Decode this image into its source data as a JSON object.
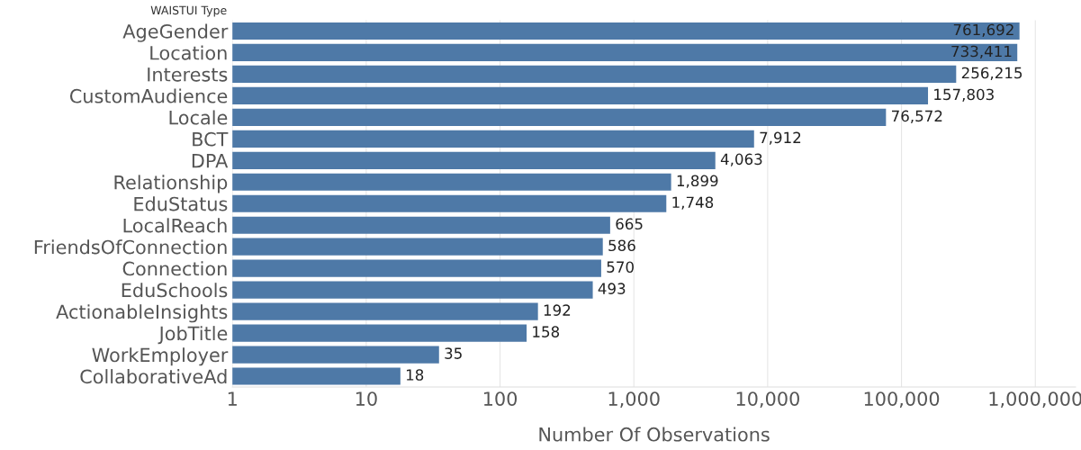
{
  "chart_data": {
    "type": "bar",
    "orientation": "horizontal",
    "ylabel": "WAISTUI Type",
    "xlabel": "Number Of Observations",
    "categories": [
      "AgeGender",
      "Location",
      "Interests",
      "CustomAudience",
      "Locale",
      "BCT",
      "DPA",
      "Relationship",
      "EduStatus",
      "LocalReach",
      "FriendsOfConnection",
      "Connection",
      "EduSchools",
      "ActionableInsights",
      "JobTitle",
      "WorkEmployer",
      "CollaborativeAd"
    ],
    "values": [
      761692,
      733411,
      256215,
      157803,
      76572,
      7912,
      4063,
      1899,
      1748,
      665,
      586,
      570,
      493,
      192,
      158,
      35,
      18
    ],
    "value_labels": [
      "761,692",
      "733,411",
      "256,215",
      "157,803",
      "76,572",
      "7,912",
      "4,063",
      "1,899",
      "1,748",
      "665",
      "586",
      "570",
      "493",
      "192",
      "158",
      "35",
      "18"
    ],
    "color": "#4e79a7",
    "log": "x",
    "xlim": [
      1,
      2000000
    ],
    "xticks": [
      1,
      10,
      100,
      {
        "value": 1000,
        "label": "1,000"
      },
      {
        "value": 10000,
        "label": "10,000"
      },
      {
        "value": 100000,
        "label": "100,000"
      },
      {
        "value": 1000000,
        "label": "1,000,000"
      }
    ],
    "grid": "x"
  }
}
